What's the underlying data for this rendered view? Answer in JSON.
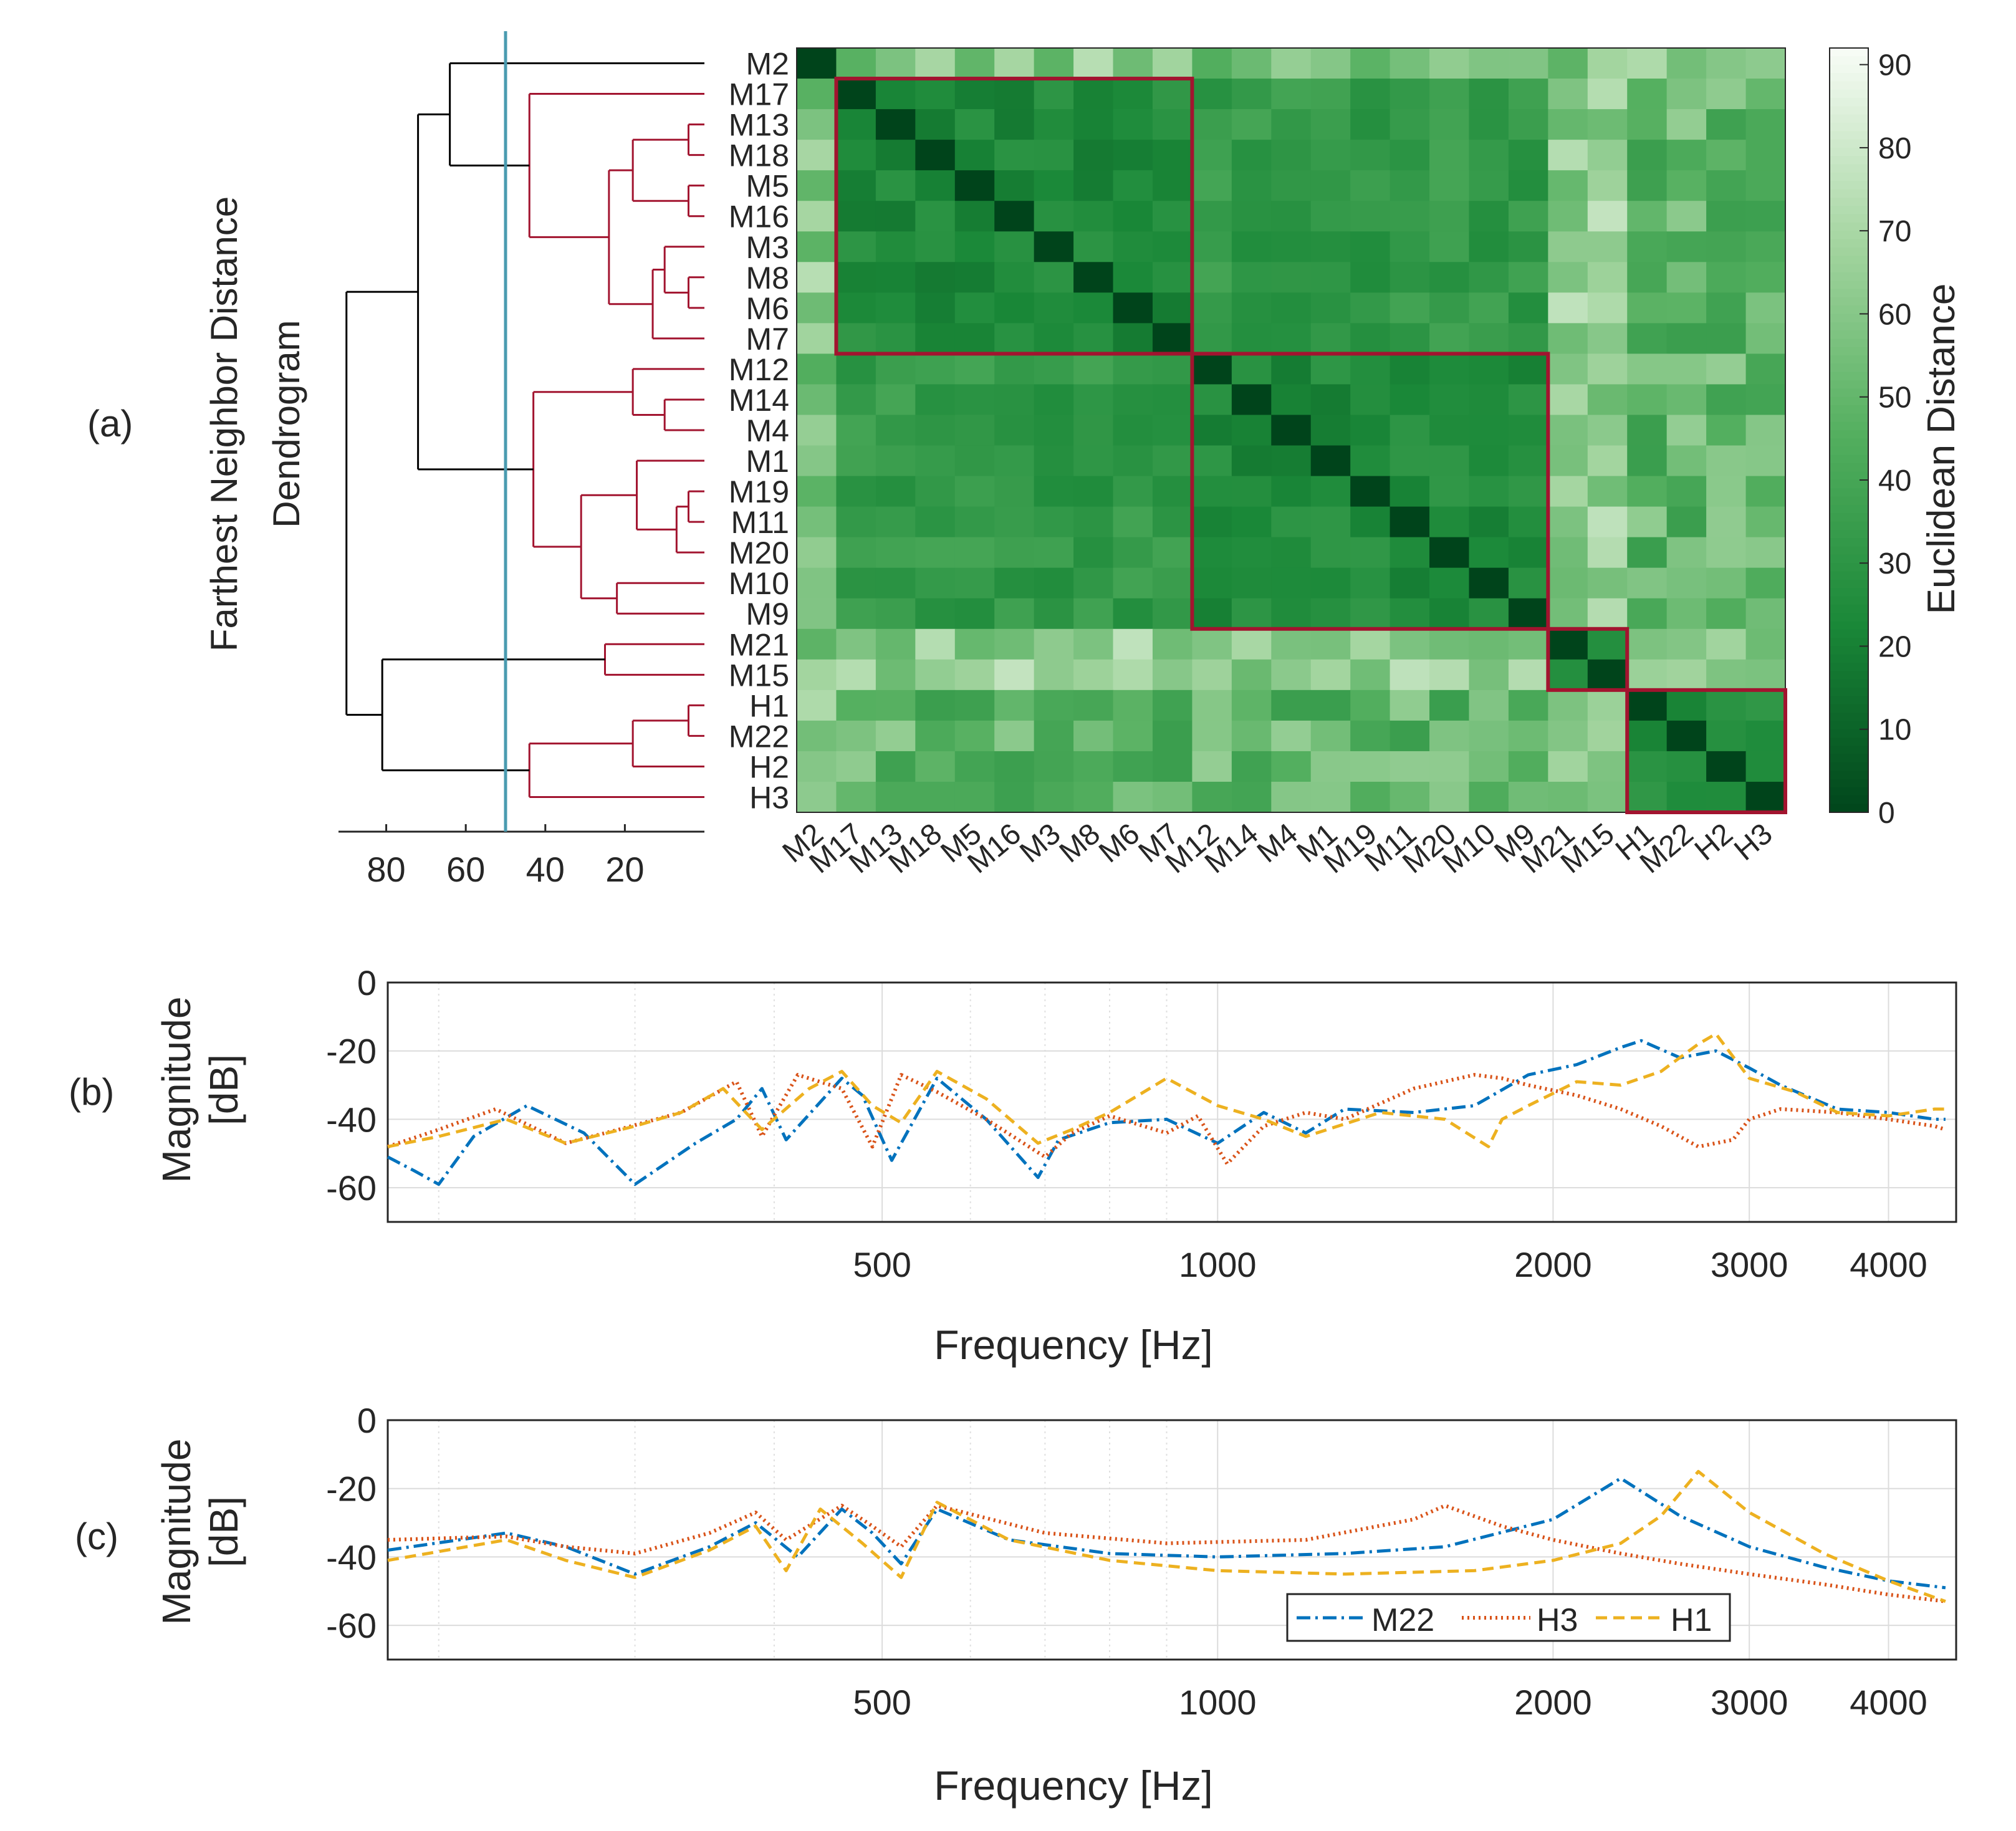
{
  "panel_labels": {
    "a": "(a)",
    "b": "(b)",
    "c": "(c)"
  },
  "colors": {
    "m22": "#0072BD",
    "h3": "#D95319",
    "h1": "#EDB120",
    "cluster": "#A2142F",
    "cutline": "#4A9BB0",
    "tree": "#000000"
  },
  "chart_data": [
    {
      "type": "heatmap",
      "title": "",
      "labels": [
        "M2",
        "M17",
        "M13",
        "M18",
        "M5",
        "M16",
        "M3",
        "M8",
        "M6",
        "M7",
        "M12",
        "M14",
        "M4",
        "M1",
        "M19",
        "M11",
        "M20",
        "M10",
        "M9",
        "M21",
        "M15",
        "H1",
        "M22",
        "H2",
        "H3"
      ],
      "xlabel": "",
      "ylabel": "",
      "colorbar": {
        "label": "Euclidean Distance",
        "range": [
          0,
          92
        ],
        "ticks": [
          0,
          10,
          20,
          30,
          40,
          50,
          60,
          70,
          80,
          90
        ]
      },
      "cluster_blocks": [
        [
          1,
          9
        ],
        [
          10,
          18
        ],
        [
          19,
          20
        ],
        [
          21,
          24
        ]
      ],
      "dendrogram": {
        "title": [
          "Farthest Neighbor Distance",
          "Dendrogram"
        ],
        "xticks": [
          80,
          60,
          40,
          20
        ],
        "xlim": [
          0,
          92
        ],
        "cut_distance": 50
      }
    },
    {
      "type": "line",
      "xscale": "log",
      "xlim": [
        180,
        4600
      ],
      "ylim": [
        -70,
        0
      ],
      "xticks": [
        500,
        1000,
        2000,
        3000,
        4000
      ],
      "yticks": [
        0,
        -20,
        -40,
        -60
      ],
      "xlabel": "Frequency [Hz]",
      "ylabel": [
        "Magnitude",
        "[dB]"
      ],
      "series": [
        {
          "name": "M22",
          "style": "dash-dot",
          "x": [
            180,
            190,
            200,
            215,
            240,
            270,
            300,
            340,
            370,
            390,
            410,
            460,
            480,
            510,
            560,
            620,
            690,
            720,
            800,
            900,
            1000,
            1100,
            1200,
            1300,
            1500,
            1700,
            1900,
            2100,
            2300,
            2400,
            2600,
            2800,
            3000,
            3200,
            3600,
            4000,
            4400,
            4500
          ],
          "y": [
            -51,
            -55,
            -59,
            -45,
            -36,
            -44,
            -59,
            -47,
            -40,
            -31,
            -46,
            -28,
            -33,
            -52,
            -28,
            -40,
            -57,
            -46,
            -41,
            -40,
            -47,
            -38,
            -44,
            -37,
            -38,
            -36,
            -27,
            -24,
            -19,
            -17,
            -22,
            -20,
            -25,
            -30,
            -37,
            -38,
            -40,
            -40
          ]
        },
        {
          "name": "H3",
          "style": "dotted",
          "x": [
            180,
            200,
            225,
            260,
            290,
            330,
            370,
            390,
            420,
            460,
            490,
            520,
            560,
            620,
            700,
            740,
            800,
            900,
            960,
            1020,
            1100,
            1200,
            1300,
            1500,
            1700,
            1800,
            1900,
            2100,
            2300,
            2500,
            2700,
            2900,
            3000,
            3200,
            3600,
            4000,
            4400,
            4500
          ],
          "y": [
            -48,
            -43,
            -37,
            -47,
            -43,
            -38,
            -29,
            -45,
            -27,
            -31,
            -48,
            -27,
            -32,
            -40,
            -51,
            -44,
            -39,
            -44,
            -39,
            -53,
            -42,
            -38,
            -40,
            -31,
            -27,
            -28,
            -30,
            -33,
            -37,
            -42,
            -48,
            -46,
            -40,
            -37,
            -38,
            -40,
            -42,
            -43
          ]
        },
        {
          "name": "H1",
          "style": "dashed",
          "x": [
            180,
            200,
            230,
            260,
            300,
            330,
            360,
            390,
            430,
            460,
            490,
            520,
            560,
            620,
            690,
            740,
            800,
            900,
            1000,
            1100,
            1200,
            1400,
            1600,
            1750,
            1800,
            1900,
            2100,
            2300,
            2500,
            2700,
            2800,
            3000,
            3300,
            3600,
            4000,
            4400,
            4500
          ],
          "y": [
            -48,
            -45,
            -40,
            -47,
            -42,
            -38,
            -31,
            -43,
            -31,
            -26,
            -36,
            -41,
            -26,
            -34,
            -47,
            -43,
            -38,
            -28,
            -36,
            -40,
            -45,
            -38,
            -40,
            -48,
            -40,
            -36,
            -29,
            -30,
            -26,
            -18,
            -15,
            -28,
            -32,
            -38,
            -39,
            -37,
            -37
          ]
        }
      ]
    },
    {
      "type": "line",
      "xscale": "log",
      "xlim": [
        180,
        4600
      ],
      "ylim": [
        -70,
        0
      ],
      "xticks": [
        500,
        1000,
        2000,
        3000,
        4000
      ],
      "yticks": [
        0,
        -20,
        -40,
        -60
      ],
      "xlabel": "Frequency [Hz]",
      "ylabel": [
        "Magnitude",
        "[dB]"
      ],
      "legend": {
        "position": "bottom-right",
        "entries": [
          "M22",
          "H3",
          "H1"
        ]
      },
      "series": [
        {
          "name": "M22",
          "style": "dash-dot",
          "x": [
            180,
            230,
            260,
            300,
            350,
            385,
            420,
            460,
            490,
            520,
            560,
            650,
            800,
            1000,
            1300,
            1600,
            2000,
            2300,
            2600,
            3000,
            3500,
            4000,
            4500
          ],
          "y": [
            -38,
            -33,
            -37,
            -45,
            -37,
            -30,
            -40,
            -26,
            -33,
            -42,
            -26,
            -35,
            -39,
            -40,
            -39,
            -37,
            -29,
            -17,
            -28,
            -37,
            -43,
            -47,
            -49
          ]
        },
        {
          "name": "H3",
          "style": "dotted",
          "x": [
            180,
            230,
            260,
            300,
            350,
            385,
            410,
            460,
            490,
            520,
            560,
            700,
            900,
            1200,
            1500,
            1600,
            1800,
            2000,
            2300,
            2600,
            3000,
            3500,
            4000,
            4500
          ],
          "y": [
            -35,
            -34,
            -37,
            -39,
            -33,
            -27,
            -35,
            -25,
            -31,
            -37,
            -25,
            -33,
            -36,
            -35,
            -29,
            -25,
            -31,
            -35,
            -39,
            -42,
            -45,
            -48,
            -51,
            -53
          ]
        },
        {
          "name": "H1",
          "style": "dashed",
          "x": [
            180,
            230,
            260,
            300,
            350,
            385,
            410,
            440,
            480,
            520,
            560,
            650,
            800,
            1000,
            1300,
            1700,
            2000,
            2300,
            2500,
            2700,
            3000,
            3500,
            4000,
            4500
          ],
          "y": [
            -41,
            -35,
            -41,
            -46,
            -38,
            -31,
            -44,
            -26,
            -36,
            -46,
            -24,
            -35,
            -41,
            -44,
            -45,
            -44,
            -41,
            -36,
            -28,
            -15,
            -27,
            -39,
            -47,
            -53
          ]
        }
      ]
    }
  ]
}
